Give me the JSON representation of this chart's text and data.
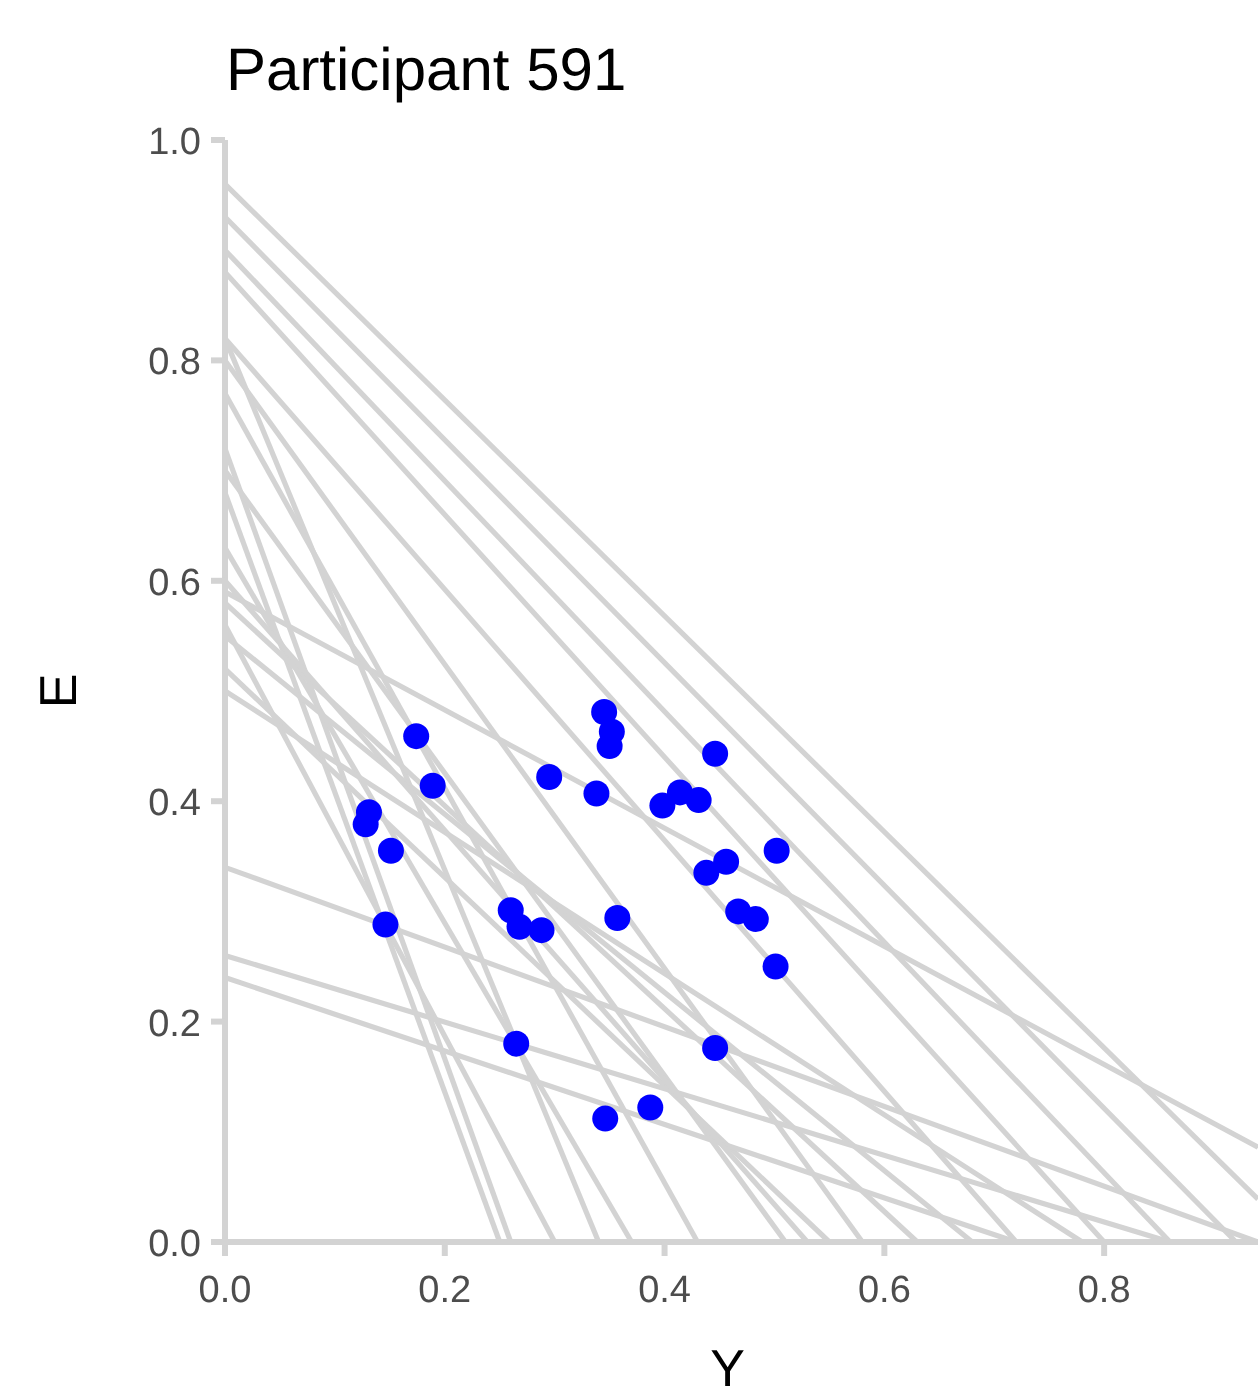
{
  "chart_data": {
    "type": "scatter",
    "title": "Participant 591",
    "xlabel": "Y",
    "ylabel": "E",
    "xlim": [
      0,
      0.94
    ],
    "ylim": [
      0,
      1
    ],
    "xticks": [
      {
        "value": 0,
        "label": "0.0"
      },
      {
        "value": 0.2,
        "label": "0.2"
      },
      {
        "value": 0.4,
        "label": "0.4"
      },
      {
        "value": 0.6,
        "label": "0.6"
      },
      {
        "value": 0.8,
        "label": "0.8"
      }
    ],
    "yticks": [
      {
        "value": 0,
        "label": "0.0"
      },
      {
        "value": 0.2,
        "label": "0.2"
      },
      {
        "value": 0.4,
        "label": "0.4"
      },
      {
        "value": 0.6,
        "label": "0.6"
      },
      {
        "value": 0.8,
        "label": "0.8"
      },
      {
        "value": 1,
        "label": "1.0"
      }
    ],
    "grid": false,
    "line_style": "solid",
    "series": [
      {
        "type": "line",
        "color": "#d3d3d3",
        "x": [
          0,
          0.94
        ],
        "values": [
          0.96,
          0.039
        ]
      },
      {
        "type": "line",
        "color": "#d3d3d3",
        "x": [
          0,
          0.92
        ],
        "values": [
          0.93,
          0
        ]
      },
      {
        "type": "line",
        "color": "#d3d3d3",
        "x": [
          0,
          0.86
        ],
        "values": [
          0.9,
          0
        ]
      },
      {
        "type": "line",
        "color": "#d3d3d3",
        "x": [
          0,
          0.8
        ],
        "values": [
          0.88,
          0
        ]
      },
      {
        "type": "line",
        "color": "#d3d3d3",
        "x": [
          0,
          0.72
        ],
        "values": [
          0.82,
          0
        ]
      },
      {
        "type": "line",
        "color": "#d3d3d3",
        "x": [
          0,
          0.58
        ],
        "values": [
          0.8,
          0
        ]
      },
      {
        "type": "line",
        "color": "#d3d3d3",
        "x": [
          0,
          0.34
        ],
        "values": [
          0.82,
          0
        ]
      },
      {
        "type": "line",
        "color": "#d3d3d3",
        "x": [
          0,
          0.26
        ],
        "values": [
          0.72,
          0
        ]
      },
      {
        "type": "line",
        "color": "#d3d3d3",
        "x": [
          0,
          0.51
        ],
        "values": [
          0.7,
          0
        ]
      },
      {
        "type": "line",
        "color": "#d3d3d3",
        "x": [
          0,
          0.25
        ],
        "values": [
          0.68,
          0
        ]
      },
      {
        "type": "line",
        "color": "#d3d3d3",
        "x": [
          0,
          0.37
        ],
        "values": [
          0.63,
          0
        ]
      },
      {
        "type": "line",
        "color": "#d3d3d3",
        "x": [
          0,
          0.94
        ],
        "values": [
          0.59,
          0.086
        ]
      },
      {
        "type": "line",
        "color": "#d3d3d3",
        "x": [
          0,
          0.63
        ],
        "values": [
          0.58,
          0
        ]
      },
      {
        "type": "line",
        "color": "#d3d3d3",
        "x": [
          0,
          0.3
        ],
        "values": [
          0.56,
          0
        ]
      },
      {
        "type": "line",
        "color": "#d3d3d3",
        "x": [
          0,
          0.68
        ],
        "values": [
          0.55,
          0
        ]
      },
      {
        "type": "line",
        "color": "#d3d3d3",
        "x": [
          0,
          0.55
        ],
        "values": [
          0.52,
          0
        ]
      },
      {
        "type": "line",
        "color": "#d3d3d3",
        "x": [
          0,
          0.78
        ],
        "values": [
          0.5,
          0
        ]
      },
      {
        "type": "line",
        "color": "#d3d3d3",
        "x": [
          0,
          0.94
        ],
        "values": [
          0.34,
          0
        ]
      },
      {
        "type": "line",
        "color": "#d3d3d3",
        "x": [
          0,
          0.86
        ],
        "values": [
          0.26,
          0
        ]
      },
      {
        "type": "line",
        "color": "#d3d3d3",
        "x": [
          0,
          0.72
        ],
        "values": [
          0.24,
          0
        ]
      },
      {
        "type": "line",
        "color": "#d3d3d3",
        "x": [
          0,
          0.53
        ],
        "values": [
          0.6,
          0
        ]
      },
      {
        "type": "line",
        "color": "#d3d3d3",
        "x": [
          0,
          0.43
        ],
        "values": [
          0.77,
          0
        ]
      },
      {
        "color": "#0000ff",
        "marker": "circle",
        "x": [
          0.174,
          0.189,
          0.131,
          0.128,
          0.151,
          0.146,
          0.345,
          0.352,
          0.35,
          0.295,
          0.338,
          0.446,
          0.398,
          0.414,
          0.431,
          0.502,
          0.438,
          0.456,
          0.467,
          0.483,
          0.501,
          0.26,
          0.268,
          0.288,
          0.357,
          0.265,
          0.446,
          0.346,
          0.387
        ],
        "values": [
          0.459,
          0.414,
          0.39,
          0.379,
          0.355,
          0.288,
          0.481,
          0.463,
          0.45,
          0.422,
          0.407,
          0.443,
          0.396,
          0.408,
          0.401,
          0.355,
          0.335,
          0.345,
          0.3,
          0.293,
          0.25,
          0.301,
          0.286,
          0.283,
          0.294,
          0.18,
          0.176,
          0.112,
          0.122
        ]
      }
    ]
  }
}
